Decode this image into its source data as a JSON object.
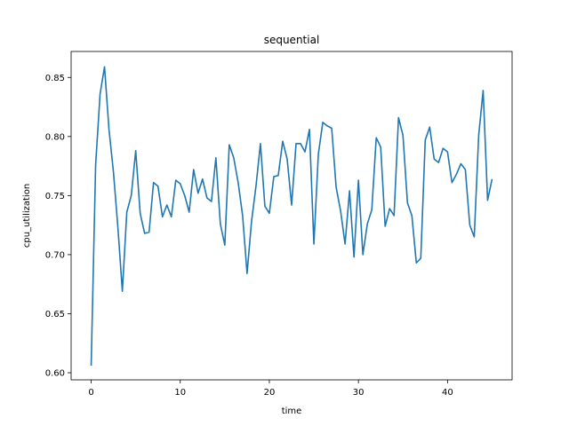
{
  "chart_data": {
    "type": "line",
    "title": "sequential",
    "xlabel": "time",
    "ylabel": "cpu_utilization",
    "xlim": [
      -2.25,
      47.25
    ],
    "ylim": [
      0.594,
      0.872
    ],
    "xticks": [
      0,
      10,
      20,
      30,
      40
    ],
    "yticks": [
      0.6,
      0.65,
      0.7,
      0.75,
      0.8,
      0.85
    ],
    "xtick_labels": [
      "0",
      "10",
      "20",
      "30",
      "40"
    ],
    "ytick_labels": [
      "0.60",
      "0.65",
      "0.70",
      "0.75",
      "0.80",
      "0.85"
    ],
    "grid": false,
    "line_color": "#1f77b4",
    "series": [
      {
        "x": [
          0.0,
          0.5,
          1.0,
          1.5,
          2.0,
          2.5,
          3.0,
          3.5,
          4.0,
          4.5,
          5.0,
          5.5,
          6.0,
          6.5,
          7.0,
          7.5,
          8.0,
          8.5,
          9.0,
          9.5,
          10.0,
          10.5,
          11.0,
          11.5,
          12.0,
          12.5,
          13.0,
          13.5,
          14.0,
          14.5,
          15.0,
          15.5,
          16.0,
          16.5,
          17.0,
          17.5,
          18.0,
          18.5,
          19.0,
          19.5,
          20.0,
          20.5,
          21.0,
          21.5,
          22.0,
          22.5,
          23.0,
          23.5,
          24.0,
          24.5,
          25.0,
          25.5,
          26.0,
          26.5,
          27.0,
          27.5,
          28.0,
          28.5,
          29.0,
          29.5,
          30.0,
          30.5,
          31.0,
          31.5,
          32.0,
          32.5,
          33.0,
          33.5,
          34.0,
          34.5,
          35.0,
          35.5,
          36.0,
          36.5,
          37.0,
          37.5,
          38.0,
          38.5,
          39.0,
          39.5,
          40.0,
          40.5,
          41.0,
          41.5,
          42.0,
          42.5,
          43.0,
          43.5,
          44.0,
          44.5,
          45.0
        ],
        "values": [
          0.606,
          0.776,
          0.836,
          0.859,
          0.806,
          0.77,
          0.723,
          0.669,
          0.736,
          0.75,
          0.788,
          0.735,
          0.718,
          0.719,
          0.761,
          0.758,
          0.732,
          0.742,
          0.732,
          0.763,
          0.76,
          0.75,
          0.736,
          0.772,
          0.752,
          0.764,
          0.748,
          0.745,
          0.782,
          0.726,
          0.708,
          0.793,
          0.782,
          0.761,
          0.733,
          0.684,
          0.728,
          0.758,
          0.794,
          0.741,
          0.735,
          0.766,
          0.767,
          0.796,
          0.781,
          0.742,
          0.794,
          0.794,
          0.787,
          0.806,
          0.709,
          0.785,
          0.812,
          0.809,
          0.807,
          0.757,
          0.737,
          0.709,
          0.754,
          0.698,
          0.763,
          0.7,
          0.726,
          0.738,
          0.799,
          0.791,
          0.724,
          0.739,
          0.733,
          0.816,
          0.801,
          0.744,
          0.733,
          0.693,
          0.697,
          0.797,
          0.808,
          0.781,
          0.778,
          0.79,
          0.787,
          0.761,
          0.768,
          0.777,
          0.772,
          0.725,
          0.715,
          0.801,
          0.839,
          0.746,
          0.764
        ]
      }
    ]
  }
}
